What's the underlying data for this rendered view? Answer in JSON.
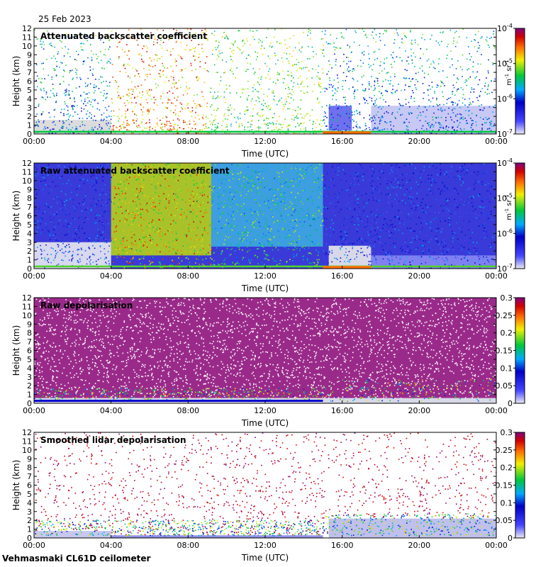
{
  "figure": {
    "date": "25 Feb 2023",
    "site": "Vehmasmaki CL61D ceilometer"
  },
  "chart_data": [
    {
      "type": "heatmap",
      "title": "Attenuated backscatter coefficient",
      "xlabel": "Time (UTC)",
      "ylabel": "Height (km)",
      "x_ticks": [
        "00:00",
        "04:00",
        "08:00",
        "12:00",
        "16:00",
        "20:00",
        "00:00"
      ],
      "x_range_hours": [
        0,
        24
      ],
      "y_ticks": [
        "0",
        "1",
        "2",
        "3",
        "4",
        "5",
        "6",
        "7",
        "8",
        "9",
        "10",
        "11",
        "12"
      ],
      "ylim": [
        0,
        12
      ],
      "colorbar": {
        "scale": "log",
        "ticks": [
          "10^-7",
          "10^-6",
          "10^-5",
          "10^-4"
        ],
        "exponents": [
          -7,
          -6,
          -5,
          -4
        ],
        "units": "m^-1 sr^-1",
        "units_text": [
          "m",
          "-1",
          " sr",
          "-1"
        ]
      }
    },
    {
      "type": "heatmap",
      "title": "Raw attenuated backscatter coefficient",
      "xlabel": "Time (UTC)",
      "ylabel": "Height (km)",
      "x_ticks": [
        "00:00",
        "04:00",
        "08:00",
        "12:00",
        "16:00",
        "20:00",
        "00:00"
      ],
      "x_range_hours": [
        0,
        24
      ],
      "y_ticks": [
        "0",
        "1",
        "2",
        "3",
        "4",
        "5",
        "6",
        "7",
        "8",
        "9",
        "10",
        "11",
        "12"
      ],
      "ylim": [
        0,
        12
      ],
      "colorbar": {
        "scale": "log",
        "ticks": [
          "10^-7",
          "10^-6",
          "10^-5",
          "10^-4"
        ],
        "exponents": [
          -7,
          -6,
          -5,
          -4
        ],
        "units": "m^-1 sr^-1",
        "units_text": [
          "m",
          "-1",
          " sr",
          "-1"
        ]
      }
    },
    {
      "type": "heatmap",
      "title": "Raw depolarisation",
      "xlabel": "Time (UTC)",
      "ylabel": "Height (km)",
      "x_ticks": [
        "00:00",
        "04:00",
        "08:00",
        "12:00",
        "16:00",
        "20:00",
        "00:00"
      ],
      "x_range_hours": [
        0,
        24
      ],
      "y_ticks": [
        "0",
        "1",
        "2",
        "3",
        "4",
        "5",
        "6",
        "7",
        "8",
        "9",
        "10",
        "11",
        "12"
      ],
      "ylim": [
        0,
        12
      ],
      "colorbar": {
        "scale": "linear",
        "ticks": [
          "0",
          "0.05",
          "0.1",
          "0.15",
          "0.2",
          "0.25",
          "0.3"
        ],
        "values": [
          0,
          0.05,
          0.1,
          0.15,
          0.2,
          0.25,
          0.3
        ],
        "range": [
          0,
          0.3
        ]
      }
    },
    {
      "type": "heatmap",
      "title": "Smoothed lidar depolarisation",
      "xlabel": "Time (UTC)",
      "ylabel": "Height (km)",
      "x_ticks": [
        "00:00",
        "04:00",
        "08:00",
        "12:00",
        "16:00",
        "20:00",
        "00:00"
      ],
      "x_range_hours": [
        0,
        24
      ],
      "y_ticks": [
        "0",
        "1",
        "2",
        "3",
        "4",
        "5",
        "6",
        "7",
        "8",
        "9",
        "10",
        "11",
        "12"
      ],
      "ylim": [
        0,
        12
      ],
      "colorbar": {
        "scale": "linear",
        "ticks": [
          "0",
          "0.05",
          "0.1",
          "0.15",
          "0.2",
          "0.25",
          "0.3"
        ],
        "values": [
          0,
          0.05,
          0.1,
          0.15,
          0.2,
          0.25,
          0.3
        ],
        "range": [
          0,
          0.3
        ]
      }
    }
  ]
}
